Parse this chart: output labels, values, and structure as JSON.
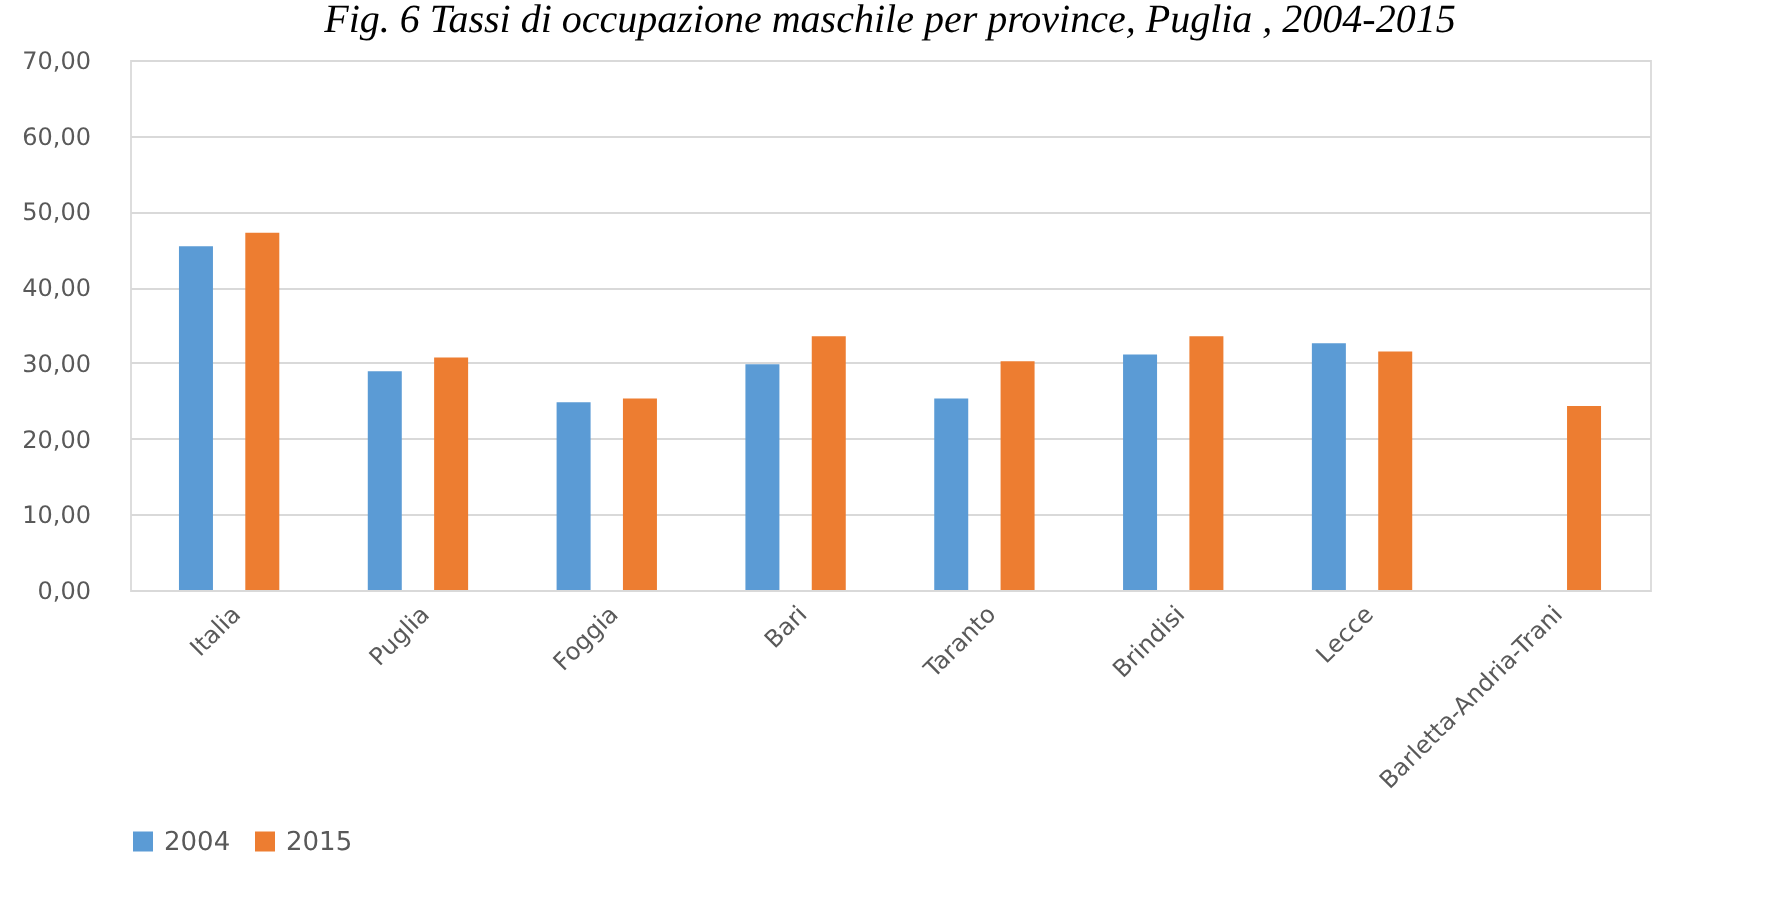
{
  "chart_data": {
    "type": "bar",
    "title": "Fig. 6 Tassi di occupazione maschile per province, Puglia , 2004-2015",
    "categories": [
      "Italia",
      "Puglia",
      "Foggia",
      "Bari",
      "Taranto",
      "Brindisi",
      "Lecce",
      "Barletta-Andria-Trani"
    ],
    "series": [
      {
        "name": "2004",
        "color": "#5b9bd5",
        "values": [
          45.4,
          28.9,
          24.8,
          29.8,
          25.3,
          31.1,
          32.6,
          null
        ]
      },
      {
        "name": "2015",
        "color": "#ed7d31",
        "values": [
          47.2,
          30.7,
          25.3,
          33.5,
          30.2,
          33.5,
          31.5,
          24.3
        ]
      }
    ],
    "ylim": [
      0,
      70
    ],
    "yticks": [
      {
        "value": 0,
        "label": "0,00"
      },
      {
        "value": 10,
        "label": "10,00"
      },
      {
        "value": 20,
        "label": "20,00"
      },
      {
        "value": 30,
        "label": "30,00"
      },
      {
        "value": 40,
        "label": "40,00"
      },
      {
        "value": 50,
        "label": "50,00"
      },
      {
        "value": 60,
        "label": "60,00"
      },
      {
        "value": 70,
        "label": "70,00"
      }
    ],
    "grid": "y",
    "legend": "bottom"
  }
}
